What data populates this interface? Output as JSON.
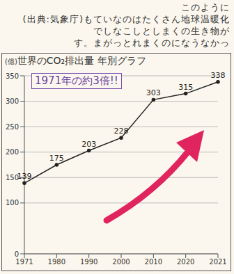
{
  "note_lines": [
    "このように",
    "(出典:気象庁)もていなのはたくさん地球温暖化",
    "でしなこしとしまくの生き物が",
    "す。まがっとれまくのになうなかっ"
  ],
  "chart_data": {
    "type": "line",
    "title": "世界のCO₂排出量 年別グラフ",
    "y_label": "(億)",
    "annotation": "1971年の約3倍!!",
    "categories": [
      "1971",
      "1980",
      "1990",
      "2000",
      "2010",
      "2020",
      "2021"
    ],
    "values": [
      139,
      175,
      203,
      228,
      303,
      315,
      338
    ],
    "color": "#222222",
    "marker": "circle",
    "ylim": [
      0,
      350
    ],
    "yticks": [
      0,
      100,
      150,
      200,
      250,
      300,
      350
    ],
    "grid": true,
    "data_labels": true
  }
}
